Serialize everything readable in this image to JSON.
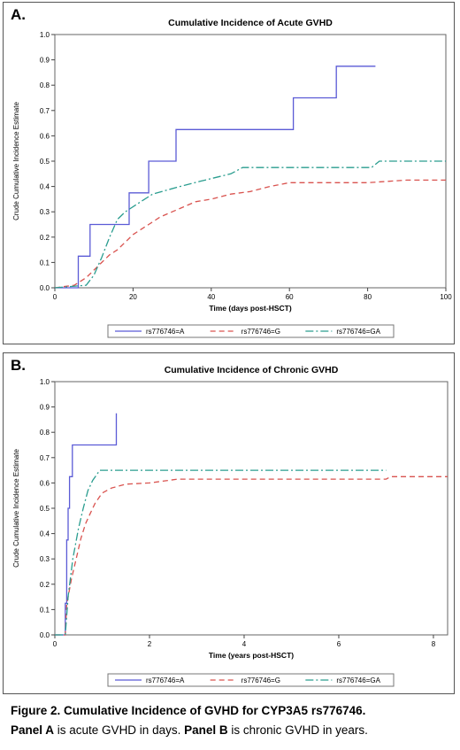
{
  "panel_a_letter": "A.",
  "panel_b_letter": "B.",
  "caption": {
    "line1": "Figure 2. Cumulative Incidence of GVHD for CYP3A5 rs776746.",
    "line2_bold1": "Panel A",
    "line2_plain1": " is acute GVHD in days. ",
    "line2_bold2": "Panel B",
    "line2_plain2": " is chronic GVHD in years."
  },
  "chart_data": [
    {
      "type": "line",
      "step": true,
      "title": "Cumulative Incidence of Acute GVHD",
      "xlabel": "Time (days post-HSCT)",
      "ylabel": "Crude Cumulative Incidence Estimate",
      "xlim": [
        0,
        100
      ],
      "ylim": [
        0,
        1.0
      ],
      "xticks": [
        0,
        20,
        40,
        60,
        80,
        100
      ],
      "yticks": [
        0,
        0.1,
        0.2,
        0.3,
        0.4,
        0.5,
        0.6,
        0.7,
        0.8,
        0.9,
        1.0
      ],
      "grid": false,
      "legend_position": "bottom",
      "series": [
        {
          "name": "rs776746=A",
          "color": "#5b5bd6",
          "dash": "solid",
          "points": [
            [
              0,
              0
            ],
            [
              6,
              0
            ],
            [
              6,
              0.125
            ],
            [
              9,
              0.125
            ],
            [
              9,
              0.25
            ],
            [
              19,
              0.25
            ],
            [
              19,
              0.375
            ],
            [
              24,
              0.375
            ],
            [
              24,
              0.5
            ],
            [
              31,
              0.5
            ],
            [
              31,
              0.625
            ],
            [
              61,
              0.625
            ],
            [
              61,
              0.75
            ],
            [
              72,
              0.75
            ],
            [
              72,
              0.875
            ],
            [
              82,
              0.875
            ]
          ]
        },
        {
          "name": "rs776746=G",
          "color": "#d9534f",
          "dash": "dashed",
          "points": [
            [
              0,
              0
            ],
            [
              5,
              0.01
            ],
            [
              8,
              0.04
            ],
            [
              10,
              0.07
            ],
            [
              12,
              0.1
            ],
            [
              14,
              0.13
            ],
            [
              16,
              0.15
            ],
            [
              18,
              0.18
            ],
            [
              20,
              0.21
            ],
            [
              22,
              0.23
            ],
            [
              24,
              0.25
            ],
            [
              27,
              0.28
            ],
            [
              30,
              0.3
            ],
            [
              33,
              0.32
            ],
            [
              36,
              0.34
            ],
            [
              40,
              0.35
            ],
            [
              45,
              0.37
            ],
            [
              50,
              0.38
            ],
            [
              55,
              0.4
            ],
            [
              60,
              0.415
            ],
            [
              80,
              0.415
            ],
            [
              90,
              0.425
            ],
            [
              100,
              0.425
            ]
          ]
        },
        {
          "name": "rs776746=GA",
          "color": "#2a9d8f",
          "dash": "dashdot",
          "points": [
            [
              0,
              0
            ],
            [
              8,
              0.01
            ],
            [
              10,
              0.05
            ],
            [
              12,
              0.12
            ],
            [
              14,
              0.2
            ],
            [
              16,
              0.27
            ],
            [
              18,
              0.3
            ],
            [
              21,
              0.33
            ],
            [
              25,
              0.37
            ],
            [
              32,
              0.4
            ],
            [
              37,
              0.42
            ],
            [
              45,
              0.45
            ],
            [
              48,
              0.475
            ],
            [
              81,
              0.475
            ],
            [
              83,
              0.5
            ],
            [
              100,
              0.5
            ]
          ]
        }
      ]
    },
    {
      "type": "line",
      "step": true,
      "title": "Cumulative Incidence of Chronic GVHD",
      "xlabel": "Time (years post-HSCT)",
      "ylabel": "Crude Cumulative Incidence Estimate",
      "xlim": [
        0,
        8.3
      ],
      "ylim": [
        0,
        1.0
      ],
      "xticks": [
        0,
        2,
        4,
        6,
        8
      ],
      "yticks": [
        0,
        0.1,
        0.2,
        0.3,
        0.4,
        0.5,
        0.6,
        0.7,
        0.8,
        0.9,
        1.0
      ],
      "grid": false,
      "legend_position": "bottom",
      "series": [
        {
          "name": "rs776746=A",
          "color": "#5b5bd6",
          "dash": "solid",
          "points": [
            [
              0,
              0
            ],
            [
              0.22,
              0
            ],
            [
              0.22,
              0.125
            ],
            [
              0.25,
              0.125
            ],
            [
              0.25,
              0.375
            ],
            [
              0.28,
              0.375
            ],
            [
              0.28,
              0.5
            ],
            [
              0.31,
              0.5
            ],
            [
              0.31,
              0.625
            ],
            [
              0.37,
              0.625
            ],
            [
              0.37,
              0.75
            ],
            [
              1.3,
              0.75
            ],
            [
              1.3,
              0.875
            ]
          ]
        },
        {
          "name": "rs776746=G",
          "color": "#d9534f",
          "dash": "dashed",
          "points": [
            [
              0,
              0
            ],
            [
              0.22,
              0
            ],
            [
              0.25,
              0.12
            ],
            [
              0.35,
              0.22
            ],
            [
              0.45,
              0.3
            ],
            [
              0.55,
              0.38
            ],
            [
              0.65,
              0.44
            ],
            [
              0.75,
              0.48
            ],
            [
              0.85,
              0.52
            ],
            [
              1.0,
              0.56
            ],
            [
              1.2,
              0.58
            ],
            [
              1.5,
              0.595
            ],
            [
              2.0,
              0.6
            ],
            [
              2.6,
              0.615
            ],
            [
              7.0,
              0.615
            ],
            [
              7.1,
              0.625
            ],
            [
              8.3,
              0.625
            ]
          ]
        },
        {
          "name": "rs776746=GA",
          "color": "#2a9d8f",
          "dash": "dashdot",
          "points": [
            [
              0,
              0
            ],
            [
              0.22,
              0
            ],
            [
              0.28,
              0.15
            ],
            [
              0.38,
              0.3
            ],
            [
              0.5,
              0.42
            ],
            [
              0.6,
              0.5
            ],
            [
              0.7,
              0.57
            ],
            [
              0.8,
              0.61
            ],
            [
              0.95,
              0.65
            ],
            [
              7.0,
              0.65
            ]
          ]
        }
      ]
    }
  ]
}
